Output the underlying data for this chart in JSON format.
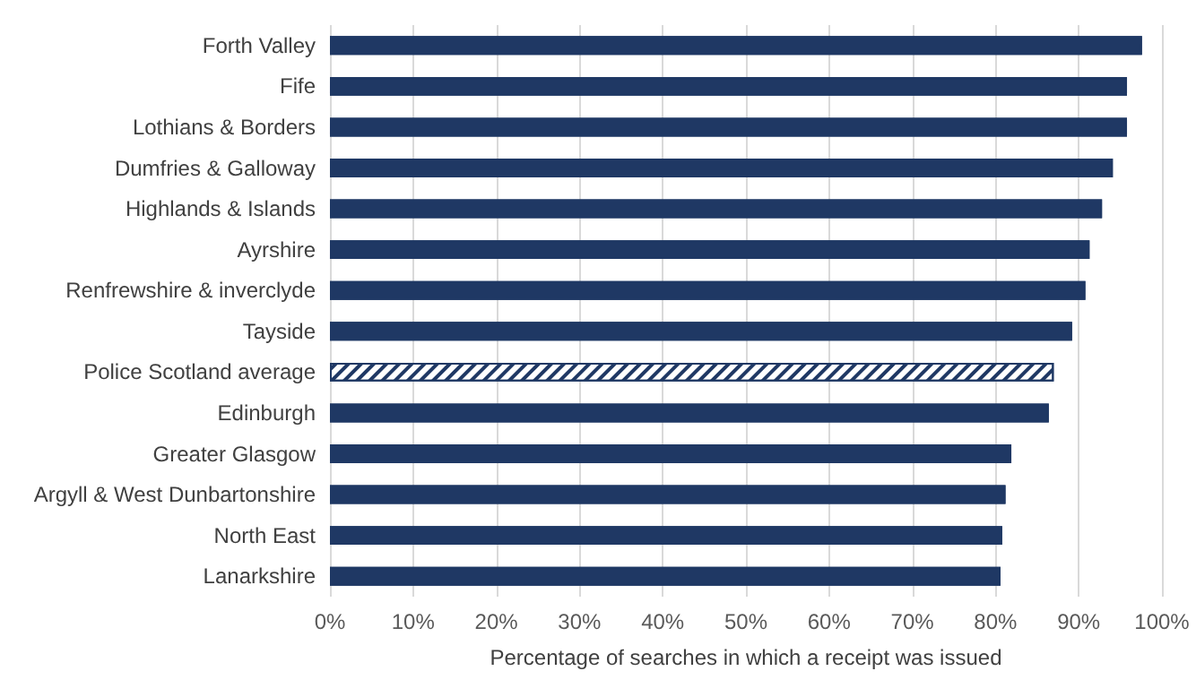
{
  "chart_data": {
    "type": "bar",
    "orientation": "horizontal",
    "xlabel": "Percentage of searches in which a receipt was issued",
    "categories": [
      "Forth Valley",
      "Fife",
      "Lothians & Borders",
      "Dumfries & Galloway",
      "Highlands & Islands",
      "Ayrshire",
      "Renfrewshire & inverclyde",
      "Tayside",
      "Police Scotland average",
      "Edinburgh",
      "Greater Glasgow",
      "Argyll & West Dunbartonshire",
      "North East",
      "Lanarkshire"
    ],
    "values": [
      97.6,
      95.8,
      95.8,
      94.1,
      92.8,
      91.3,
      90.8,
      89.2,
      87.0,
      86.4,
      81.9,
      81.2,
      80.8,
      80.6
    ],
    "color": "#1f3864",
    "colors": [
      "#1f3864",
      "#1f3864",
      "#1f3864",
      "#1f3864",
      "#1f3864",
      "#1f3864",
      "#1f3864",
      "#1f3864",
      "#ffffff",
      "#1f3864",
      "#1f3864",
      "#1f3864",
      "#1f3864",
      "#1f3864"
    ],
    "xlim": [
      0,
      100
    ],
    "xticks": [
      {
        "value": 0,
        "label": "0%"
      },
      {
        "value": 10,
        "label": "10%"
      },
      {
        "value": 20,
        "label": "20%"
      },
      {
        "value": 30,
        "label": "30%"
      },
      {
        "value": 40,
        "label": "40%"
      },
      {
        "value": 50,
        "label": "50%"
      },
      {
        "value": 60,
        "label": "60%"
      },
      {
        "value": 70,
        "label": "70%"
      },
      {
        "value": 80,
        "label": "80%"
      },
      {
        "value": 90,
        "label": "90%"
      },
      {
        "value": 100,
        "label": "100%"
      }
    ],
    "grid": "x"
  }
}
